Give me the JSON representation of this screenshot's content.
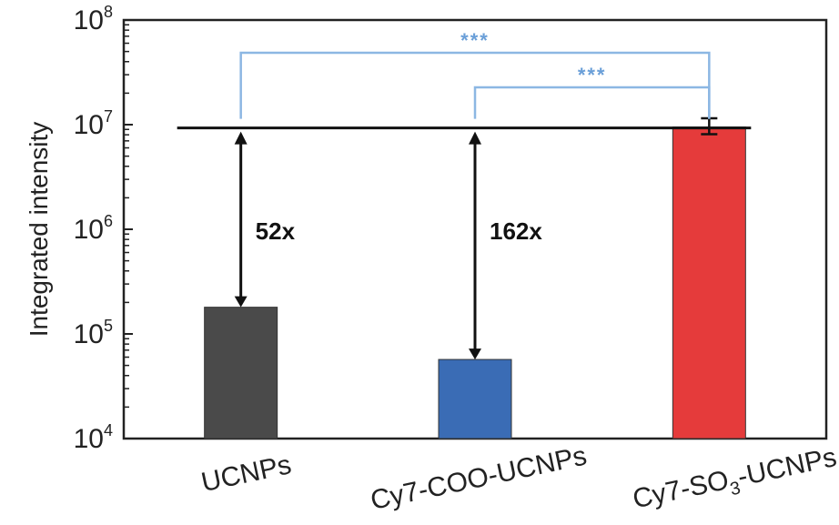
{
  "chart_data": {
    "type": "bar",
    "ylabel": "Integrated intensity",
    "yscale": "log",
    "ylim": [
      10000,
      100000000
    ],
    "yticks": [
      {
        "value": 10000,
        "base": "10",
        "exp": "4"
      },
      {
        "value": 100000,
        "base": "10",
        "exp": "5"
      },
      {
        "value": 1000000,
        "base": "10",
        "exp": "6"
      },
      {
        "value": 10000000,
        "base": "10",
        "exp": "7"
      },
      {
        "value": 100000000,
        "base": "10",
        "exp": "8"
      }
    ],
    "categories": [
      {
        "pre": "UCNPs",
        "sub": "",
        "post": ""
      },
      {
        "pre": "Cy7-COO-UCNPs",
        "sub": "",
        "post": ""
      },
      {
        "pre": "Cy7-SO",
        "sub": "3",
        "post": "-UCNPs"
      }
    ],
    "values": [
      180000,
      57000,
      9500000
    ],
    "error_top": [
      null,
      null,
      11500000
    ],
    "error_bottom": [
      null,
      null,
      8100000
    ],
    "colors": [
      "#4a4a4a",
      "#3a6cb5",
      "#e53b3b"
    ],
    "reference_line": 9300000,
    "fold_changes": [
      {
        "category_index": 0,
        "label": "52x"
      },
      {
        "category_index": 1,
        "label": "162x"
      }
    ],
    "significance": [
      {
        "from": 0,
        "to": 2,
        "label": "***"
      },
      {
        "from": 1,
        "to": 2,
        "label": "***"
      }
    ],
    "grid": false
  }
}
